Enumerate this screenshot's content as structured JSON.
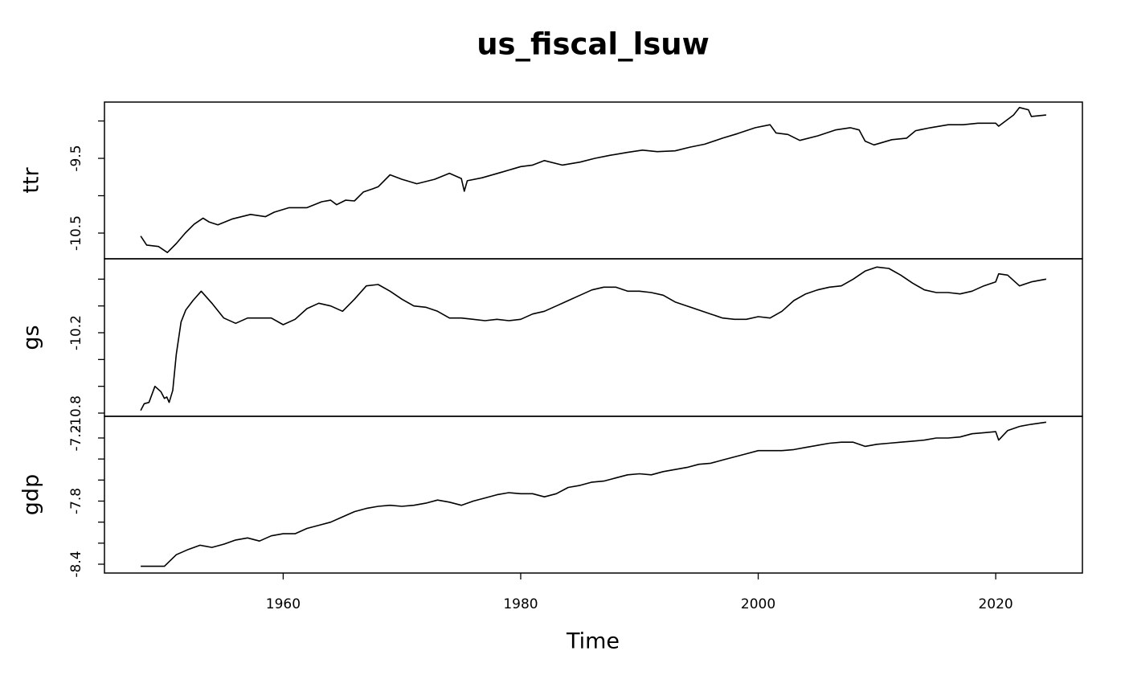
{
  "chart_data": {
    "type": "line",
    "title": "us_fiscal_lsuw",
    "xlabel": "Time",
    "xlim": [
      1944.95,
      2027.3
    ],
    "xticks": [
      1960,
      1980,
      2000,
      2020
    ],
    "panels": [
      {
        "ylabel": "ttr",
        "ylim": [
          -10.844,
          -8.747
        ],
        "yticks": [
          -10.5,
          {
            "value": -10,
            "label": null
          },
          -9.5,
          {
            "value": -9,
            "label": null
          }
        ],
        "x": [
          1948.0,
          1948.5,
          1949.5,
          1950.25,
          1951.0,
          1951.75,
          1952.5,
          1953.25,
          1953.75,
          1954.5,
          1955.75,
          1957.25,
          1958.5,
          1959.25,
          1960.5,
          1962.0,
          1963.25,
          1964.0,
          1964.5,
          1965.25,
          1966.0,
          1966.75,
          1967.5,
          1968.0,
          1969.0,
          1970.0,
          1971.25,
          1972.75,
          1974.0,
          1975.0,
          1975.25,
          1975.5,
          1976.75,
          1978.5,
          1980.0,
          1981.0,
          1982.0,
          1983.5,
          1985.0,
          1986.25,
          1987.5,
          1989.0,
          1990.25,
          1991.5,
          1993.0,
          1994.25,
          1995.5,
          1997.0,
          1998.25,
          1999.75,
          2001.0,
          2001.5,
          2002.5,
          2003.5,
          2005.0,
          2006.5,
          2007.75,
          2008.5,
          2009.0,
          2009.75,
          2011.25,
          2012.5,
          2013.25,
          2014.5,
          2016.0,
          2017.25,
          2018.5,
          2020.0,
          2020.25,
          2021.5,
          2022.0,
          2022.75,
          2023.0,
          2024.25
        ],
        "values": [
          -10.54,
          -10.66,
          -10.68,
          -10.76,
          -10.64,
          -10.5,
          -10.38,
          -10.3,
          -10.35,
          -10.39,
          -10.31,
          -10.25,
          -10.28,
          -10.22,
          -10.16,
          -10.16,
          -10.08,
          -10.06,
          -10.12,
          -10.06,
          -10.07,
          -9.95,
          -9.91,
          -9.88,
          -9.72,
          -9.78,
          -9.84,
          -9.78,
          -9.7,
          -9.77,
          -9.94,
          -9.8,
          -9.76,
          -9.68,
          -9.61,
          -9.59,
          -9.53,
          -9.59,
          -9.55,
          -9.5,
          -9.46,
          -9.42,
          -9.39,
          -9.41,
          -9.4,
          -9.35,
          -9.31,
          -9.23,
          -9.17,
          -9.09,
          -9.05,
          -9.16,
          -9.18,
          -9.26,
          -9.2,
          -9.12,
          -9.09,
          -9.12,
          -9.27,
          -9.32,
          -9.25,
          -9.23,
          -9.13,
          -9.09,
          -9.05,
          -9.05,
          -9.03,
          -9.03,
          -9.07,
          -8.92,
          -8.82,
          -8.85,
          -8.94,
          -8.92
        ]
      },
      {
        "ylabel": "gs",
        "ylim": [
          -10.824,
          -9.648
        ],
        "yticks": [
          -10.8,
          {
            "value": -10.6,
            "label": null
          },
          {
            "value": -10.4,
            "label": null
          },
          -10.2,
          {
            "value": -10,
            "label": null
          },
          {
            "value": -9.8,
            "label": null
          }
        ],
        "x": [
          1948.0,
          1948.3,
          1948.7,
          1949.2,
          1949.7,
          1950.0,
          1950.2,
          1950.4,
          1950.7,
          1951.0,
          1951.4,
          1951.8,
          1952.4,
          1953.1,
          1954,
          1955,
          1956,
          1957,
          1958,
          1959,
          1960,
          1961,
          1962,
          1963,
          1964,
          1965,
          1966,
          1967,
          1968,
          1969,
          1970,
          1971,
          1972,
          1973,
          1974,
          1975,
          1976,
          1977,
          1978,
          1979,
          1980,
          1981,
          1982,
          1983,
          1984,
          1985,
          1986,
          1987,
          1988,
          1989,
          1990,
          1991,
          1992,
          1993,
          1994,
          1995,
          1996,
          1997,
          1998,
          1999,
          2000,
          2001,
          2002,
          2003,
          2004,
          2005,
          2006,
          2007,
          2008,
          2009,
          2010,
          2011,
          2012,
          2013,
          2014,
          2015,
          2016,
          2017,
          2018,
          2019,
          2020,
          2020.25,
          2021,
          2022,
          2023,
          2024.25
        ],
        "values": [
          -10.78,
          -10.73,
          -10.72,
          -10.6,
          -10.64,
          -10.69,
          -10.68,
          -10.72,
          -10.63,
          -10.36,
          -10.12,
          -10.03,
          -9.96,
          -9.89,
          -9.98,
          -10.09,
          -10.13,
          -10.09,
          -10.09,
          -10.09,
          -10.14,
          -10.1,
          -10.02,
          -9.98,
          -10.0,
          -10.04,
          -9.95,
          -9.85,
          -9.84,
          -9.89,
          -9.95,
          -10.0,
          -10.01,
          -10.04,
          -10.09,
          -10.09,
          -10.1,
          -10.11,
          -10.1,
          -10.11,
          -10.1,
          -10.06,
          -10.04,
          -10.0,
          -9.96,
          -9.92,
          -9.88,
          -9.86,
          -9.86,
          -9.89,
          -9.89,
          -9.9,
          -9.92,
          -9.97,
          -10.0,
          -10.03,
          -10.06,
          -10.09,
          -10.1,
          -10.1,
          -10.08,
          -10.09,
          -10.04,
          -9.96,
          -9.91,
          -9.88,
          -9.86,
          -9.85,
          -9.8,
          -9.74,
          -9.71,
          -9.72,
          -9.77,
          -9.83,
          -9.88,
          -9.9,
          -9.9,
          -9.91,
          -9.89,
          -9.85,
          -9.82,
          -9.76,
          -9.77,
          -9.85,
          -9.82,
          -9.8
        ]
      },
      {
        "ylabel": "gdp",
        "ylim": [
          -8.484,
          -6.994
        ],
        "yticks": [
          -8.4,
          {
            "value": -8.2,
            "label": null
          },
          {
            "value": -8,
            "label": null
          },
          -7.8,
          {
            "value": -7.6,
            "label": null
          },
          {
            "value": -7.4,
            "label": null
          },
          -7.2
        ],
        "x": [
          1948,
          1949,
          1950,
          1951,
          1952,
          1953,
          1954,
          1955,
          1956,
          1957,
          1958,
          1959,
          1960,
          1961,
          1962,
          1963,
          1964,
          1965,
          1966,
          1967,
          1968,
          1969,
          1970,
          1971,
          1972,
          1973,
          1974,
          1975,
          1976,
          1977,
          1978,
          1979,
          1980,
          1981,
          1982,
          1983,
          1984,
          1985,
          1986,
          1987,
          1988,
          1989,
          1990,
          1991,
          1992,
          1993,
          1994,
          1995,
          1996,
          1997,
          1998,
          1999,
          2000,
          2001,
          2002,
          2003,
          2004,
          2005,
          2006,
          2007,
          2008,
          2009,
          2010,
          2011,
          2012,
          2013,
          2014,
          2015,
          2016,
          2017,
          2018,
          2019,
          2020,
          2020.25,
          2021,
          2022,
          2023,
          2024.25
        ],
        "values": [
          -8.42,
          -8.42,
          -8.42,
          -8.31,
          -8.26,
          -8.22,
          -8.24,
          -8.21,
          -8.17,
          -8.15,
          -8.18,
          -8.13,
          -8.11,
          -8.11,
          -8.06,
          -8.03,
          -8.0,
          -7.95,
          -7.9,
          -7.87,
          -7.85,
          -7.84,
          -7.85,
          -7.84,
          -7.82,
          -7.79,
          -7.81,
          -7.84,
          -7.8,
          -7.77,
          -7.74,
          -7.72,
          -7.73,
          -7.73,
          -7.76,
          -7.73,
          -7.67,
          -7.65,
          -7.62,
          -7.61,
          -7.58,
          -7.55,
          -7.54,
          -7.55,
          -7.52,
          -7.5,
          -7.48,
          -7.45,
          -7.44,
          -7.41,
          -7.38,
          -7.35,
          -7.32,
          -7.32,
          -7.32,
          -7.31,
          -7.29,
          -7.27,
          -7.25,
          -7.24,
          -7.24,
          -7.28,
          -7.26,
          -7.25,
          -7.24,
          -7.23,
          -7.22,
          -7.2,
          -7.2,
          -7.19,
          -7.16,
          -7.15,
          -7.14,
          -7.22,
          -7.13,
          -7.09,
          -7.07,
          -7.05
        ]
      }
    ]
  }
}
